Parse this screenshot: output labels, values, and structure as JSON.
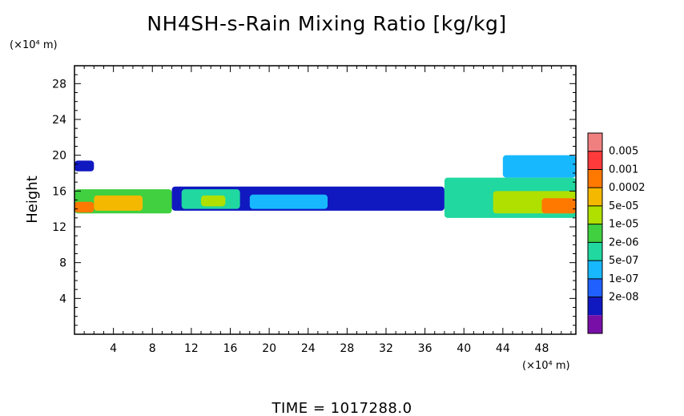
{
  "chart_data": {
    "type": "heatmap",
    "title": "NH4SH-s-Rain Mixing Ratio [kg/kg]",
    "ylabel": "Height",
    "x_unit": "(×10⁴ m)",
    "y_unit": "(×10⁴ m)",
    "xlim": [
      0,
      51.5
    ],
    "ylim": [
      0,
      30
    ],
    "x_ticks": [
      "4",
      "8",
      "12",
      "16",
      "20",
      "24",
      "28",
      "32",
      "36",
      "40",
      "44",
      "48"
    ],
    "y_ticks": [
      "4",
      "8",
      "12",
      "16",
      "20",
      "24",
      "28"
    ],
    "colorbar": {
      "labels": [
        "0.005",
        "0.001",
        "0.0002",
        "5e-05",
        "1e-05",
        "2e-06",
        "5e-07",
        "1e-07",
        "2e-08"
      ],
      "colors": [
        "#f08080",
        "#ff3a3a",
        "#ff7800",
        "#f5b800",
        "#b0e000",
        "#40d040",
        "#20d8a0",
        "#18b8ff",
        "#2060ff",
        "#1018c0",
        "#7810a8"
      ]
    },
    "time_label": "TIME  =  1017288.0",
    "regions": [
      {
        "x": [
          0,
          10
        ],
        "y": [
          13.5,
          16.2
        ],
        "level": 5
      },
      {
        "x": [
          2,
          7
        ],
        "y": [
          13.8,
          15.5
        ],
        "level": 7
      },
      {
        "x": [
          0,
          2
        ],
        "y": [
          13.6,
          14.8
        ],
        "level": 8
      },
      {
        "x": [
          10,
          38
        ],
        "y": [
          13.8,
          16.5
        ],
        "level": 1
      },
      {
        "x": [
          11,
          17
        ],
        "y": [
          14.0,
          16.2
        ],
        "level": 4
      },
      {
        "x": [
          13,
          15.5
        ],
        "y": [
          14.3,
          15.5
        ],
        "level": 6
      },
      {
        "x": [
          18,
          26
        ],
        "y": [
          14.0,
          15.6
        ],
        "level": 3
      },
      {
        "x": [
          0,
          2
        ],
        "y": [
          18.2,
          19.4
        ],
        "level": 1
      },
      {
        "x": [
          38,
          51.5
        ],
        "y": [
          13.0,
          17.5
        ],
        "level": 4
      },
      {
        "x": [
          43,
          51.5
        ],
        "y": [
          13.5,
          16.0
        ],
        "level": 6
      },
      {
        "x": [
          48,
          51.5
        ],
        "y": [
          13.5,
          15.2
        ],
        "level": 8
      },
      {
        "x": [
          44,
          51.5
        ],
        "y": [
          17.5,
          20.0
        ],
        "level": 3
      }
    ]
  }
}
